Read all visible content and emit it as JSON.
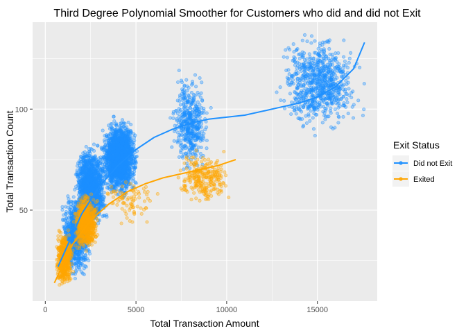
{
  "chart_data": {
    "type": "scatter",
    "title": "Third Degree Polynomial Smoother for Customers who did and did not Exit",
    "xlabel": "Total Transaction Amount",
    "ylabel": "Total Transaction Count",
    "xlim": [
      -700,
      18300
    ],
    "ylim": [
      5,
      143
    ],
    "x_ticks": [
      0,
      5000,
      10000,
      15000
    ],
    "x_tick_labels": [
      "0",
      "5000",
      "10000",
      "15000"
    ],
    "y_ticks": [
      50,
      100
    ],
    "y_tick_labels": [
      "50",
      "100"
    ],
    "grid": true,
    "background": "#ebebeb",
    "legend": {
      "title": "Exit Status",
      "placement": "right"
    },
    "series": [
      {
        "name": "Did not Exit",
        "color": "#1e90ff",
        "clusters": [
          {
            "x_range": [
              800,
              2600
            ],
            "y_range": [
              15,
              60
            ],
            "count": 900
          },
          {
            "x_range": [
              1500,
              3500
            ],
            "y_range": [
              38,
              85
            ],
            "count": 1400
          },
          {
            "x_range": [
              3000,
              5200
            ],
            "y_range": [
              55,
              97
            ],
            "count": 2000
          },
          {
            "x_range": [
              6800,
              9200
            ],
            "y_range": [
              65,
              122
            ],
            "count": 450
          },
          {
            "x_range": [
              12500,
              17800
            ],
            "y_range": [
              85,
              140
            ],
            "count": 750
          }
        ],
        "smoother": {
          "x": [
            700,
            2000,
            3000,
            4000,
            5000,
            6000,
            7000,
            8000,
            9000,
            10000,
            11000,
            12000,
            13000,
            14000,
            15000,
            16000,
            17000,
            17600
          ],
          "y": [
            22,
            48,
            62,
            72,
            80,
            86,
            90,
            93,
            95,
            96,
            97,
            99,
            101,
            103,
            106,
            111,
            120,
            133
          ]
        }
      },
      {
        "name": "Exited",
        "color": "#ffa500",
        "clusters": [
          {
            "x_range": [
              500,
              1600
            ],
            "y_range": [
              10,
              42
            ],
            "count": 450
          },
          {
            "x_range": [
              1500,
              3000
            ],
            "y_range": [
              28,
              60
            ],
            "count": 700
          },
          {
            "x_range": [
              3000,
              6500
            ],
            "y_range": [
              40,
              68
            ],
            "count": 80
          },
          {
            "x_range": [
              7000,
              10500
            ],
            "y_range": [
              50,
              82
            ],
            "count": 250
          }
        ],
        "smoother": {
          "x": [
            500,
            1500,
            2500,
            3500,
            4500,
            5500,
            6500,
            7500,
            8500,
            9500,
            10500
          ],
          "y": [
            14,
            33,
            45,
            53,
            59,
            63,
            66,
            68,
            70,
            72,
            75
          ]
        }
      }
    ]
  }
}
